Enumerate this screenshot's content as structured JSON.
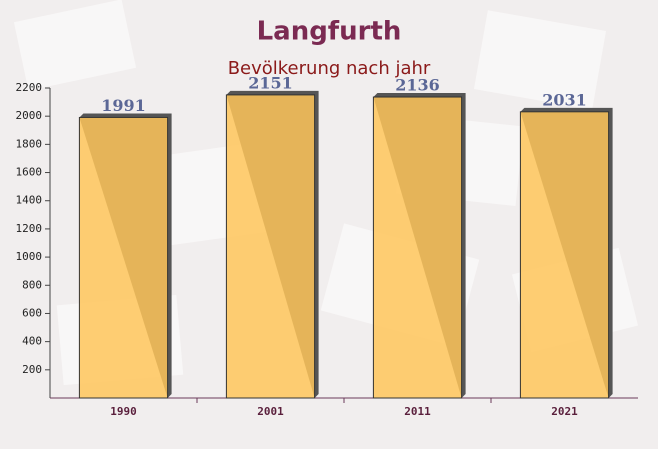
{
  "chart_data": {
    "type": "bar",
    "title": "Langfurth",
    "subtitle": "Bevölkerung nach jahr",
    "categories": [
      "1990",
      "2001",
      "2011",
      "2021"
    ],
    "values": [
      1991,
      2151,
      2136,
      2031
    ],
    "color": "#ffc55a",
    "ylim": [
      0,
      2200
    ],
    "yticks": [
      200,
      400,
      600,
      800,
      1000,
      1200,
      1400,
      1600,
      1800,
      2000,
      2200
    ],
    "grid": false
  }
}
